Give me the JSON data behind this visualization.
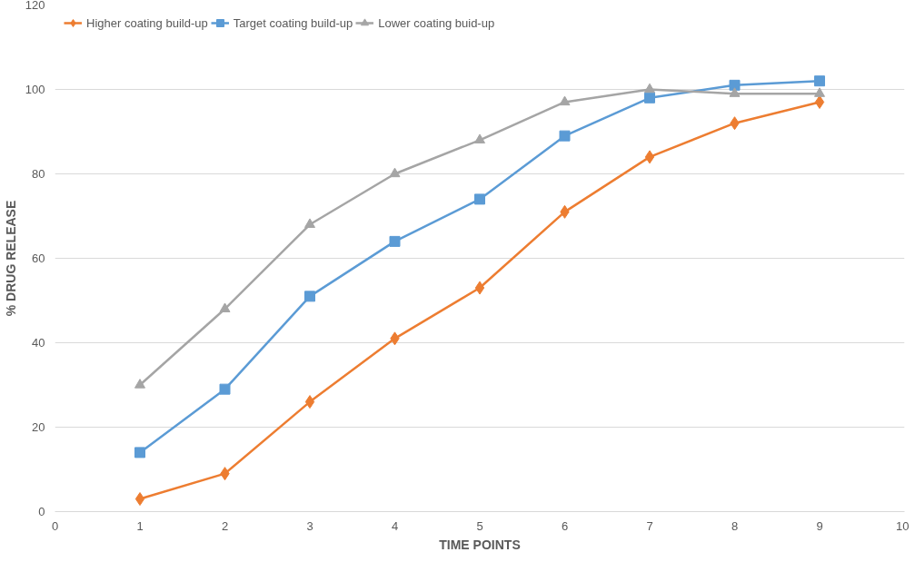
{
  "chart_data": {
    "type": "line",
    "xlabel": "TIME POINTS",
    "ylabel": "% DRUG RELEASE",
    "x": [
      1,
      2,
      3,
      4,
      5,
      6,
      7,
      8,
      9
    ],
    "xlim": [
      0,
      10
    ],
    "xticks": [
      0,
      1,
      2,
      3,
      4,
      5,
      6,
      7,
      8,
      9,
      10
    ],
    "ylim": [
      0,
      120
    ],
    "yticks": [
      0,
      20,
      40,
      60,
      80,
      100,
      120
    ],
    "grid": "y",
    "legend": "top left",
    "series": [
      {
        "name": "Higher coating build-up",
        "color": "#ed7d31",
        "marker": "diamond",
        "values": [
          3,
          9,
          26,
          41,
          53,
          71,
          84,
          92,
          97
        ]
      },
      {
        "name": "Target coating build-up",
        "color": "#5b9bd5",
        "marker": "square",
        "values": [
          14,
          29,
          51,
          64,
          74,
          89,
          98,
          101,
          102
        ]
      },
      {
        "name": "Lower coating buid-up",
        "color": "#a5a5a5",
        "marker": "triangle",
        "values": [
          30,
          48,
          68,
          80,
          88,
          97,
          100,
          99,
          99
        ]
      }
    ]
  }
}
